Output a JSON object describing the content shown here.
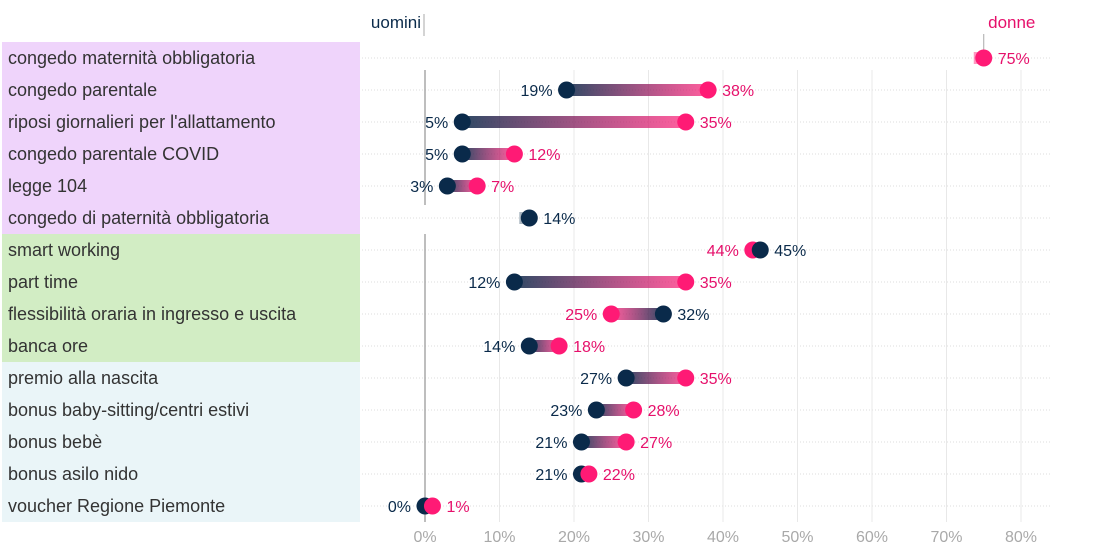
{
  "chart_data": {
    "type": "dumbbell",
    "legend": {
      "men": "uomini",
      "women": "donne"
    },
    "colors": {
      "men": "#0a2a4a",
      "women": "#ff1a75",
      "group_maternity": "#efd4fb",
      "group_flexibility": "#d2edc4",
      "group_bonus": "#eaf5f8",
      "grid": "#dcdcdc",
      "axis": "#a9a9a9"
    },
    "xlim": [
      0,
      80
    ],
    "xticks": [
      "0%",
      "10%",
      "20%",
      "30%",
      "40%",
      "50%",
      "60%",
      "70%",
      "80%"
    ],
    "xtick_values": [
      0,
      10,
      20,
      30,
      40,
      50,
      60,
      70,
      80
    ],
    "groups": [
      {
        "name": "group_maternity",
        "rows": [
          0,
          5
        ]
      },
      {
        "name": "group_flexibility",
        "rows": [
          6,
          9
        ]
      },
      {
        "name": "group_bonus",
        "rows": [
          10,
          14
        ]
      }
    ],
    "rows": [
      {
        "label": "congedo maternità obbligatoria",
        "men": null,
        "women": 75,
        "men_label": "",
        "women_label": "75%"
      },
      {
        "label": "congedo parentale",
        "men": 19,
        "women": 38,
        "men_label": "19%",
        "women_label": "38%"
      },
      {
        "label": "riposi giornalieri per l'allattamento",
        "men": 5,
        "women": 35,
        "men_label": "5%",
        "women_label": "35%"
      },
      {
        "label": "congedo parentale COVID",
        "men": 5,
        "women": 12,
        "men_label": "5%",
        "women_label": "12%"
      },
      {
        "label": "legge 104",
        "men": 3,
        "women": 7,
        "men_label": "3%",
        "women_label": "7%"
      },
      {
        "label": "congedo di paternità obbligatoria",
        "men": 14,
        "women": null,
        "men_label": "14%",
        "women_label": ""
      },
      {
        "label": "smart working",
        "men": 45,
        "women": 44,
        "men_label": "45%",
        "women_label": "44%"
      },
      {
        "label": "part time",
        "men": 12,
        "women": 35,
        "men_label": "12%",
        "women_label": "35%"
      },
      {
        "label": "flessibilità oraria in ingresso e uscita",
        "men": 32,
        "women": 25,
        "men_label": "32%",
        "women_label": "25%"
      },
      {
        "label": "banca ore",
        "men": 14,
        "women": 18,
        "men_label": "14%",
        "women_label": "18%"
      },
      {
        "label": "premio alla nascita",
        "men": 27,
        "women": 35,
        "men_label": "27%",
        "women_label": "35%"
      },
      {
        "label": "bonus baby-sitting/centri estivi",
        "men": 23,
        "women": 28,
        "men_label": "23%",
        "women_label": "28%"
      },
      {
        "label": "bonus bebè",
        "men": 21,
        "women": 27,
        "men_label": "21%",
        "women_label": "27%"
      },
      {
        "label": "bonus asilo nido",
        "men": 21,
        "women": 22,
        "men_label": "21%",
        "women_label": "22%"
      },
      {
        "label": "voucher Regione Piemonte",
        "men": 0,
        "women": 1,
        "men_label": "0%",
        "women_label": "1%"
      }
    ]
  }
}
